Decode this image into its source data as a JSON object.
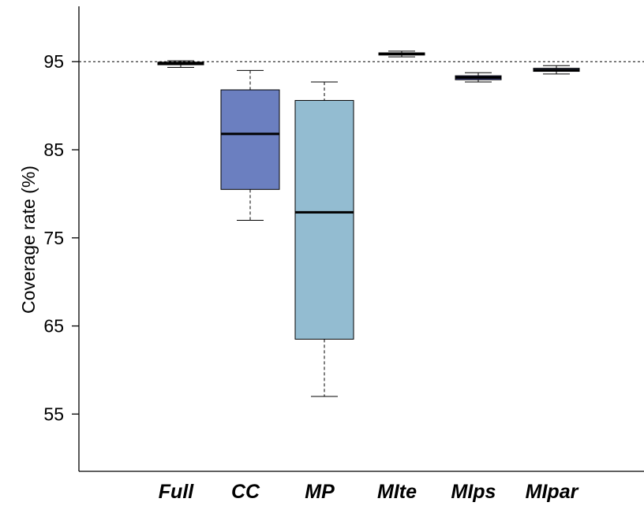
{
  "chart_data": {
    "type": "box",
    "ylabel": "Coverage rate (%)",
    "xlabel": "",
    "ylim": [
      48.5,
      102
    ],
    "yticks": [
      55,
      65,
      75,
      85,
      95
    ],
    "yticklabels": [
      "55",
      "65",
      "75",
      "85",
      "95"
    ],
    "reference_line": 95,
    "categories": [
      "Full",
      "CC",
      "MP",
      "MIte",
      "MIps",
      "MIpar"
    ],
    "colors": [
      "#6b7fc0",
      "#6b7fc0",
      "#93bcd1",
      "#8e96d8",
      "#3a3d8f",
      "#7c86c8"
    ],
    "boxes": [
      {
        "min": 94.35,
        "q1": 94.65,
        "median": 94.8,
        "q3": 94.95,
        "max": 95.1
      },
      {
        "min": 77.0,
        "q1": 80.5,
        "median": 86.8,
        "q3": 91.8,
        "max": 94.0
      },
      {
        "min": 57.0,
        "q1": 63.5,
        "median": 77.9,
        "q3": 90.6,
        "max": 92.7
      },
      {
        "min": 95.55,
        "q1": 95.75,
        "median": 95.9,
        "q3": 96.0,
        "max": 96.2
      },
      {
        "min": 92.7,
        "q1": 92.95,
        "median": 93.2,
        "q3": 93.4,
        "max": 93.75
      },
      {
        "min": 93.6,
        "q1": 93.9,
        "median": 94.05,
        "q3": 94.25,
        "max": 94.55
      }
    ]
  }
}
